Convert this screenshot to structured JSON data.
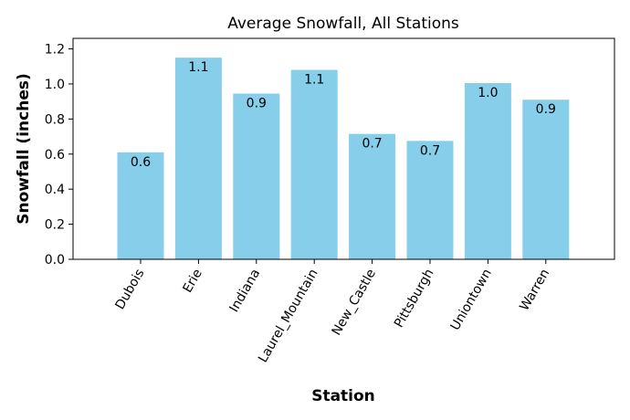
{
  "chart_data": {
    "type": "bar",
    "title": "Average Snowfall, All Stations",
    "xlabel": "Station",
    "ylabel": "Snowfall (inches)",
    "categories": [
      "Dubois",
      "Erie",
      "Indiana",
      "Laurel_Mountain",
      "New_Castle",
      "Pittsburgh",
      "Uniontown",
      "Warren"
    ],
    "values": [
      0.61,
      1.15,
      0.945,
      1.08,
      0.715,
      0.675,
      1.005,
      0.91
    ],
    "data_labels": [
      "0.6",
      "1.1",
      "0.9",
      "1.1",
      "0.7",
      "0.7",
      "1.0",
      "0.9"
    ],
    "ylim": [
      0,
      1.26
    ],
    "yticks": [
      "0.0",
      "0.2",
      "0.4",
      "0.6",
      "0.8",
      "1.0",
      "1.2"
    ],
    "grid": false,
    "bar_color": "#87ceeb"
  }
}
